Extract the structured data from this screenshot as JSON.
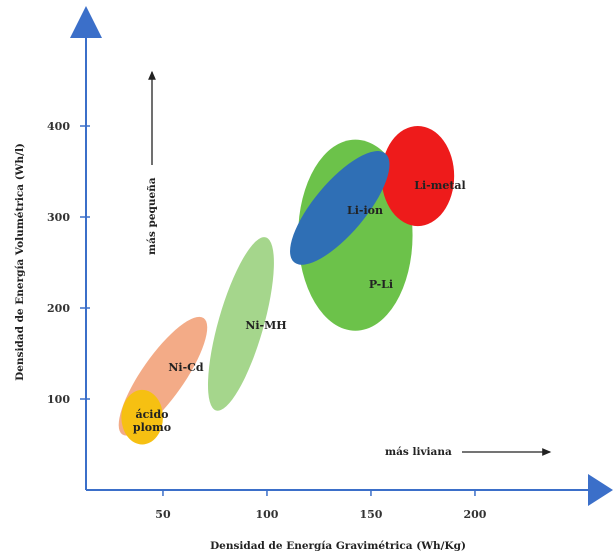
{
  "chart_data": {
    "type": "scatter",
    "title": "",
    "xlabel": "Densidad de Energía Gravimétrica (Wh/Kg)",
    "ylabel": "Densidad de Energía Volumétrica (Wh/l)",
    "x_ticks": [
      50,
      100,
      150,
      200
    ],
    "y_ticks": [
      100,
      200,
      300,
      400
    ],
    "xlim": [
      0,
      250
    ],
    "ylim": [
      0,
      480
    ],
    "grid": false,
    "axis_color": "#3b6fc9",
    "series": [
      {
        "name": "ácido plomo",
        "x_range": [
          30,
          50
        ],
        "y_range": [
          50,
          110
        ],
        "color": "#f6c012"
      },
      {
        "name": "Ni-Cd",
        "x_range": [
          35,
          65
        ],
        "y_range": [
          60,
          190
        ],
        "color": "#f2a27a"
      },
      {
        "name": "Ni-MH",
        "x_range": [
          70,
          105
        ],
        "y_range": [
          90,
          275
        ],
        "color": "#9bd17f"
      },
      {
        "name": "P-Li",
        "x_range": [
          115,
          170
        ],
        "y_range": [
          175,
          385
        ],
        "color": "#6cc24a"
      },
      {
        "name": "Li-ion",
        "x_range": [
          115,
          155
        ],
        "y_range": [
          250,
          370
        ],
        "color": "#2f6fb5"
      },
      {
        "name": "Li-metal",
        "x_range": [
          155,
          190
        ],
        "y_range": [
          290,
          400
        ],
        "color": "#ee1b1b"
      }
    ],
    "annotations": [
      {
        "text": "más pequeña",
        "direction": "up"
      },
      {
        "text": "más liviana",
        "direction": "right"
      }
    ],
    "bubble_labels": [
      {
        "series": "ácido plomo",
        "lines": [
          "ácido",
          "plomo"
        ]
      },
      {
        "series": "Ni-Cd",
        "lines": [
          "Ni-Cd"
        ]
      },
      {
        "series": "Ni-MH",
        "lines": [
          "Ni-MH"
        ]
      },
      {
        "series": "P-Li",
        "lines": [
          "P-Li"
        ]
      },
      {
        "series": "Li-ion",
        "lines": [
          "Li-ion"
        ]
      },
      {
        "series": "Li-metal",
        "lines": [
          "Li-metal"
        ]
      }
    ]
  }
}
